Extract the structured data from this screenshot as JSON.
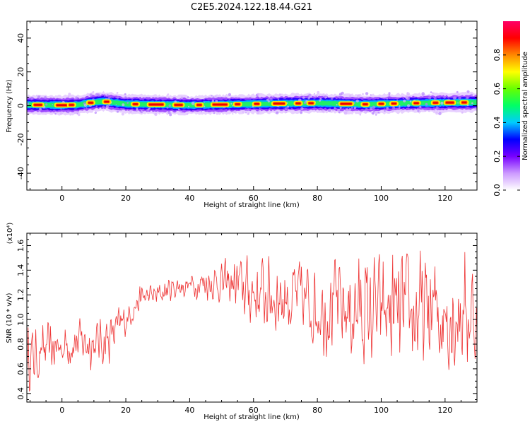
{
  "figure_title": "C2E5.2024.122.18.44.G21",
  "chart_data": [
    {
      "type": "heatmap",
      "title": "C2E5.2024.122.18.44.G21",
      "xlabel": "Height of straight line (km)",
      "ylabel": "Frequency (Hz)",
      "xlim": [
        -11,
        130
      ],
      "ylim": [
        -50,
        50
      ],
      "x_ticks": [
        0,
        20,
        40,
        60,
        80,
        100,
        120
      ],
      "y_ticks": [
        40,
        20,
        0,
        -20,
        -40
      ],
      "colorbar": {
        "label": "Normalized spectral amplitude",
        "range": [
          0.0,
          1.0
        ],
        "ticks": [
          0.0,
          0.2,
          0.4,
          0.6,
          0.8
        ],
        "colormap": [
          "#ffffff",
          "#cc99ff",
          "#7700ff",
          "#0000ff",
          "#00ccff",
          "#00ff66",
          "#66ff00",
          "#ffff00",
          "#ff8800",
          "#ff0000",
          "#ff0066"
        ]
      },
      "band_center_hz": [
        {
          "x": -10,
          "f": 0.5
        },
        {
          "x": 0,
          "f": 0.3
        },
        {
          "x": 5,
          "f": 0.5
        },
        {
          "x": 10,
          "f": 2.0
        },
        {
          "x": 13,
          "f": 2.5
        },
        {
          "x": 20,
          "f": 1.0
        },
        {
          "x": 40,
          "f": 0.3
        },
        {
          "x": 60,
          "f": 1.0
        },
        {
          "x": 80,
          "f": 1.5
        },
        {
          "x": 95,
          "f": 0.8
        },
        {
          "x": 110,
          "f": 1.5
        },
        {
          "x": 130,
          "f": 2.0
        }
      ],
      "band_halfwidth_hz": 3.5,
      "peak_segments_km": [
        [
          -9,
          -6
        ],
        [
          -2,
          2
        ],
        [
          2,
          4
        ],
        [
          8,
          10
        ],
        [
          13,
          15
        ],
        [
          22,
          24
        ],
        [
          27,
          32
        ],
        [
          35,
          38
        ],
        [
          42,
          44
        ],
        [
          47,
          52
        ],
        [
          54,
          56
        ],
        [
          60,
          62
        ],
        [
          66,
          70
        ],
        [
          73,
          75
        ],
        [
          77,
          79
        ],
        [
          87,
          91
        ],
        [
          94,
          96
        ],
        [
          99,
          101
        ],
        [
          103,
          105
        ],
        [
          110,
          112
        ],
        [
          116,
          118
        ],
        [
          120,
          123
        ],
        [
          125,
          127
        ]
      ]
    },
    {
      "type": "line",
      "xlabel": "Height of straight line (km)",
      "ylabel": "SNR (10 * v/v)",
      "y_multiplier": "(x10⁴)",
      "xlim": [
        -11,
        130
      ],
      "ylim": [
        0.33,
        1.7
      ],
      "x_ticks": [
        0,
        20,
        40,
        60,
        80,
        100,
        120
      ],
      "y_ticks": [
        0.4,
        0.6,
        0.8,
        1.0,
        1.2,
        1.4,
        1.6
      ],
      "series": [
        {
          "color": "#ee3333",
          "trend": [
            {
              "x": -11,
              "y": 0.7
            },
            {
              "x": -8,
              "y": 0.7
            },
            {
              "x": -5,
              "y": 0.75
            },
            {
              "x": 0,
              "y": 0.78
            },
            {
              "x": 5,
              "y": 0.82
            },
            {
              "x": 10,
              "y": 0.8
            },
            {
              "x": 15,
              "y": 0.85
            },
            {
              "x": 20,
              "y": 1.0
            },
            {
              "x": 25,
              "y": 1.18
            },
            {
              "x": 30,
              "y": 1.2
            },
            {
              "x": 35,
              "y": 1.26
            },
            {
              "x": 40,
              "y": 1.28
            },
            {
              "x": 45,
              "y": 1.3
            },
            {
              "x": 50,
              "y": 1.3
            },
            {
              "x": 55,
              "y": 1.28
            },
            {
              "x": 60,
              "y": 1.22
            },
            {
              "x": 70,
              "y": 1.18
            },
            {
              "x": 80,
              "y": 1.12
            },
            {
              "x": 90,
              "y": 1.08
            },
            {
              "x": 100,
              "y": 1.05
            },
            {
              "x": 110,
              "y": 1.05
            },
            {
              "x": 120,
              "y": 1.05
            },
            {
              "x": 130,
              "y": 1.05
            }
          ],
          "spread": [
            {
              "x": -11,
              "a": 0.3
            },
            {
              "x": 0,
              "a": 0.2
            },
            {
              "x": 15,
              "a": 0.25
            },
            {
              "x": 22,
              "a": 0.12
            },
            {
              "x": 40,
              "a": 0.12
            },
            {
              "x": 50,
              "a": 0.2
            },
            {
              "x": 60,
              "a": 0.35
            },
            {
              "x": 80,
              "a": 0.45
            },
            {
              "x": 100,
              "a": 0.55
            },
            {
              "x": 130,
              "a": 0.6
            }
          ],
          "sample_step_km": 0.2
        }
      ]
    }
  ]
}
